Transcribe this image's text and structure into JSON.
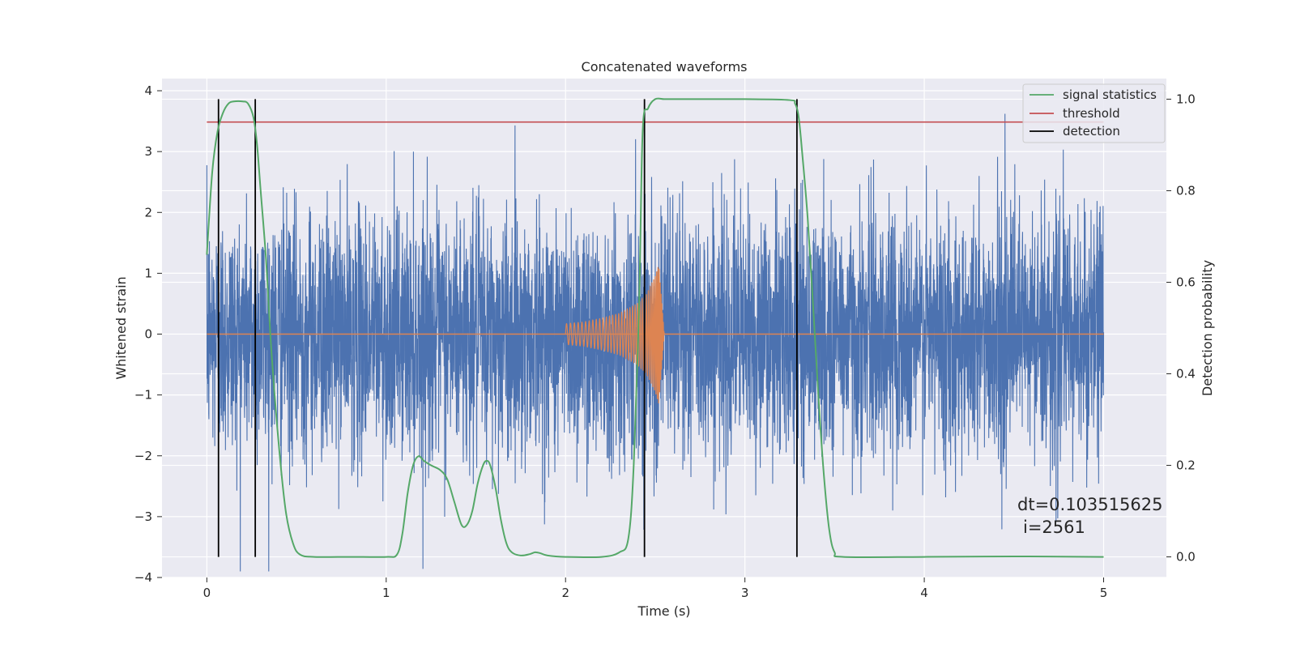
{
  "chart_data": {
    "type": "line",
    "title": "Concatenated waveforms",
    "xlabel": "Time (s)",
    "ylabel": "Whitened strain",
    "y2label": "Detection probability",
    "xlim": [
      -0.25,
      5.35
    ],
    "ylim": [
      -4.0,
      4.2
    ],
    "y2lim": [
      -0.045,
      1.045
    ],
    "x_ticks": [
      0,
      1,
      2,
      3,
      4,
      5
    ],
    "y_ticks": [
      -4,
      -3,
      -2,
      -1,
      0,
      1,
      2,
      3,
      4
    ],
    "y2_ticks": [
      0.0,
      0.2,
      0.4,
      0.6,
      0.8,
      1.0
    ],
    "x_tick_labels": [
      "0",
      "1",
      "2",
      "3",
      "4",
      "5"
    ],
    "y_tick_labels": [
      "−4",
      "−3",
      "−2",
      "−1",
      "0",
      "1",
      "2",
      "3",
      "4"
    ],
    "y2_tick_labels": [
      "0.0",
      "0.2",
      "0.4",
      "0.6",
      "0.8",
      "1.0"
    ],
    "grid": true,
    "legend_position": "top-right",
    "legend": [
      "signal statistics",
      "threshold",
      "detection"
    ],
    "colors": {
      "noise": "#4c72b0",
      "injection": "#dd8452",
      "signal_statistics": "#55a868",
      "threshold": "#c44e52",
      "detection": "#000000",
      "background": "#eaeaf2",
      "grid": "#ffffff"
    },
    "series": [
      {
        "name": "signal statistics",
        "axis": "right",
        "x": [
          0.0,
          0.03,
          0.06,
          0.09,
          0.12,
          0.15,
          0.2,
          0.23,
          0.26,
          0.28,
          0.3,
          0.33,
          0.36,
          0.4,
          0.44,
          0.48,
          0.52,
          0.6,
          0.8,
          1.0,
          1.06,
          1.09,
          1.12,
          1.15,
          1.18,
          1.21,
          1.25,
          1.3,
          1.34,
          1.38,
          1.42,
          1.45,
          1.48,
          1.51,
          1.54,
          1.56,
          1.58,
          1.61,
          1.64,
          1.67,
          1.7,
          1.75,
          1.8,
          1.83,
          1.86,
          1.9,
          2.0,
          2.2,
          2.3,
          2.35,
          2.38,
          2.41,
          2.43,
          2.46,
          2.5,
          2.55,
          2.6,
          3.0,
          3.25,
          3.28,
          3.3,
          3.32,
          3.35,
          3.38,
          3.41,
          3.44,
          3.47,
          3.5,
          3.55,
          4.0,
          4.5,
          5.0
        ],
        "y": [
          0.66,
          0.84,
          0.93,
          0.97,
          0.99,
          0.995,
          0.995,
          0.99,
          0.96,
          0.9,
          0.8,
          0.65,
          0.45,
          0.25,
          0.1,
          0.03,
          0.005,
          0.0,
          0.0,
          0.0,
          0.005,
          0.05,
          0.14,
          0.2,
          0.22,
          0.21,
          0.2,
          0.19,
          0.17,
          0.12,
          0.07,
          0.07,
          0.1,
          0.16,
          0.2,
          0.21,
          0.2,
          0.15,
          0.08,
          0.03,
          0.01,
          0.003,
          0.006,
          0.01,
          0.008,
          0.003,
          0.0,
          0.0,
          0.01,
          0.04,
          0.2,
          0.55,
          0.93,
          0.98,
          1.0,
          1.0,
          1.0,
          1.0,
          0.998,
          0.99,
          0.96,
          0.88,
          0.74,
          0.55,
          0.35,
          0.18,
          0.06,
          0.01,
          0.0,
          0.0,
          0.001,
          0.0
        ]
      },
      {
        "name": "threshold",
        "axis": "right",
        "x": [
          0.0,
          5.0
        ],
        "y": [
          0.95,
          0.95
        ]
      },
      {
        "name": "detection",
        "axis": "right",
        "x": [
          0.065,
          0.27,
          2.44,
          3.29
        ],
        "y_range": [
          0.0,
          1.0
        ]
      },
      {
        "axis": "left",
        "x_range": [
          0,
          5
        ],
        "amplitude_rms": 1.0,
        "amplitude_peak": 3.9
      },
      {
        "axis": "left",
        "x": [
          2.0,
          2.1,
          2.2,
          2.3,
          2.4,
          2.45,
          2.5,
          2.52,
          2.55
        ],
        "envelope": [
          0.17,
          0.2,
          0.26,
          0.34,
          0.5,
          0.65,
          0.95,
          1.15,
          0.0
        ]
      }
    ],
    "annotations": [
      "dt=0.103515625",
      "i=2561"
    ]
  }
}
